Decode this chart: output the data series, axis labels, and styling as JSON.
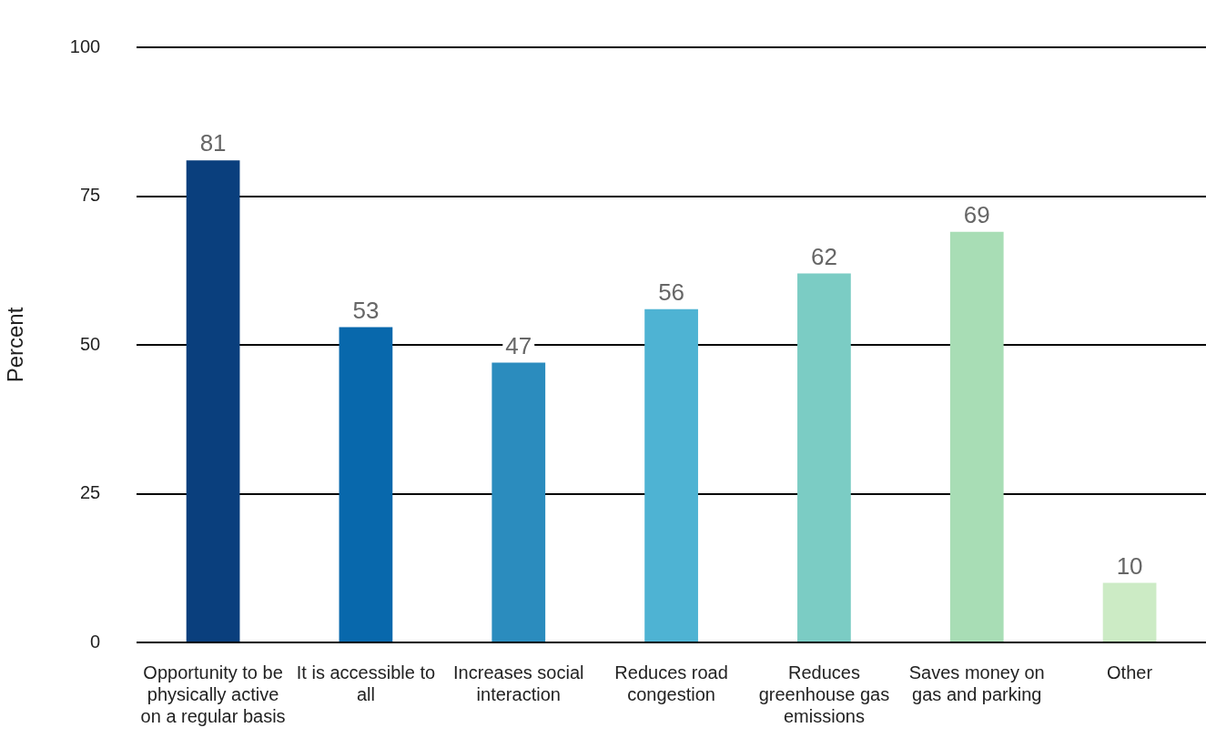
{
  "chart_data": {
    "type": "bar",
    "ylabel": "Percent",
    "categories": [
      "Opportunity to be physically active on a regular basis",
      "It is accessible to all",
      "Increases social interaction",
      "Reduces road congestion",
      "Reduces greenhouse gas emissions",
      "Saves money on gas and parking",
      "Other"
    ],
    "values": [
      81,
      53,
      47,
      56,
      62,
      69,
      10
    ],
    "data_labels": true,
    "colors": [
      "#0a3f7d",
      "#0868ac",
      "#2b8cbe",
      "#4eb3d3",
      "#7bccc4",
      "#a8ddb5",
      "#ccebc5"
    ],
    "ylim": [
      0,
      100
    ],
    "yticks": [
      0,
      25,
      50,
      75,
      100
    ],
    "grid": "y",
    "legend": false
  }
}
